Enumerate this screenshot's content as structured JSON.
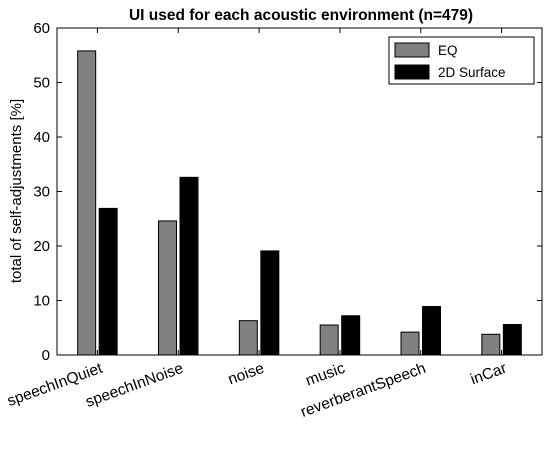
{
  "chart_data": {
    "type": "bar",
    "title": "UI used for each acoustic environment (n=479)",
    "xlabel": "",
    "ylabel": "total of self-adjustments [%]",
    "ylim": [
      0,
      60
    ],
    "yticks": [
      0,
      10,
      20,
      30,
      40,
      50,
      60
    ],
    "grid": false,
    "legend_position": "top-right",
    "categories": [
      "speechInQuiet",
      "speechInNoise",
      "noise",
      "music",
      "reverberantSpeech",
      "inCar"
    ],
    "series": [
      {
        "name": "EQ",
        "color": "#808080",
        "values": [
          55.8,
          24.6,
          6.3,
          5.5,
          4.2,
          3.8
        ]
      },
      {
        "name": "2D Surface",
        "color": "#000000",
        "values": [
          26.9,
          32.6,
          19.1,
          7.2,
          8.9,
          5.6
        ]
      }
    ]
  }
}
